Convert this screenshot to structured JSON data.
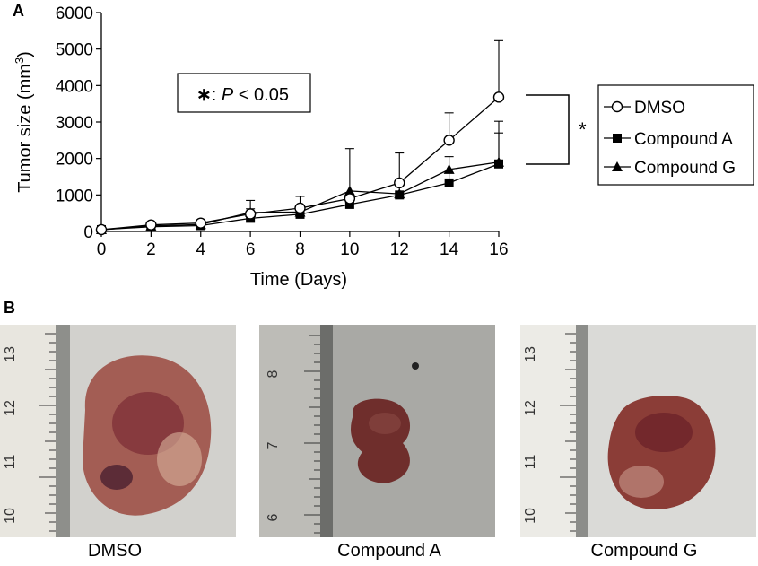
{
  "panels": {
    "a_label": "A",
    "b_label": "B"
  },
  "chart_data": {
    "type": "line",
    "xlabel": "Time (Days)",
    "ylabel_main": "Tumor size (mm",
    "ylabel_sup": "3",
    "ylabel_close": ")",
    "x": [
      0,
      2,
      4,
      6,
      8,
      10,
      12,
      14,
      16
    ],
    "xlim": [
      0,
      16
    ],
    "ylim": [
      0,
      6000
    ],
    "xticks": [
      0,
      2,
      4,
      6,
      8,
      10,
      12,
      14,
      16
    ],
    "yticks": [
      0,
      1000,
      2000,
      3000,
      4000,
      5000,
      6000
    ],
    "grid": false,
    "legend_position": "right",
    "series": [
      {
        "name": "DMSO",
        "marker": "open-circle",
        "values": [
          50,
          180,
          230,
          480,
          640,
          900,
          1330,
          2500,
          3680
        ],
        "error_upper": [
          60,
          210,
          280,
          850,
          960,
          1000,
          2150,
          3250,
          5230
        ]
      },
      {
        "name": "Compound A",
        "marker": "filled-square",
        "values": [
          50,
          130,
          160,
          360,
          470,
          740,
          1000,
          1330,
          1850
        ],
        "error_upper": [
          60,
          160,
          200,
          450,
          560,
          800,
          1050,
          1600,
          2700
        ]
      },
      {
        "name": "Compound G",
        "marker": "filled-triangle",
        "values": [
          50,
          150,
          190,
          520,
          530,
          1110,
          1030,
          1700,
          1900
        ],
        "error_upper": [
          60,
          180,
          230,
          620,
          600,
          2270,
          1400,
          2050,
          3020
        ]
      }
    ],
    "annotation": {
      "star": "∗",
      "colon_text": ": ",
      "p": "P",
      "rest": " < 0.05"
    },
    "significance_mark": "*"
  },
  "photos": [
    {
      "caption": "DMSO",
      "ruler_numbers": [
        "13",
        "12",
        "11",
        "10"
      ],
      "background": "#cfcfcb",
      "tumor_color": "#9c5a52"
    },
    {
      "caption": "Compound A",
      "ruler_numbers": [
        "8",
        "7",
        "6"
      ],
      "background": "#a7a7a3",
      "tumor_color": "#6e2c2a"
    },
    {
      "caption": "Compound G",
      "ruler_numbers": [
        "13",
        "12",
        "11",
        "10"
      ],
      "background": "#d9d9d6",
      "tumor_color": "#8a3c36"
    }
  ]
}
